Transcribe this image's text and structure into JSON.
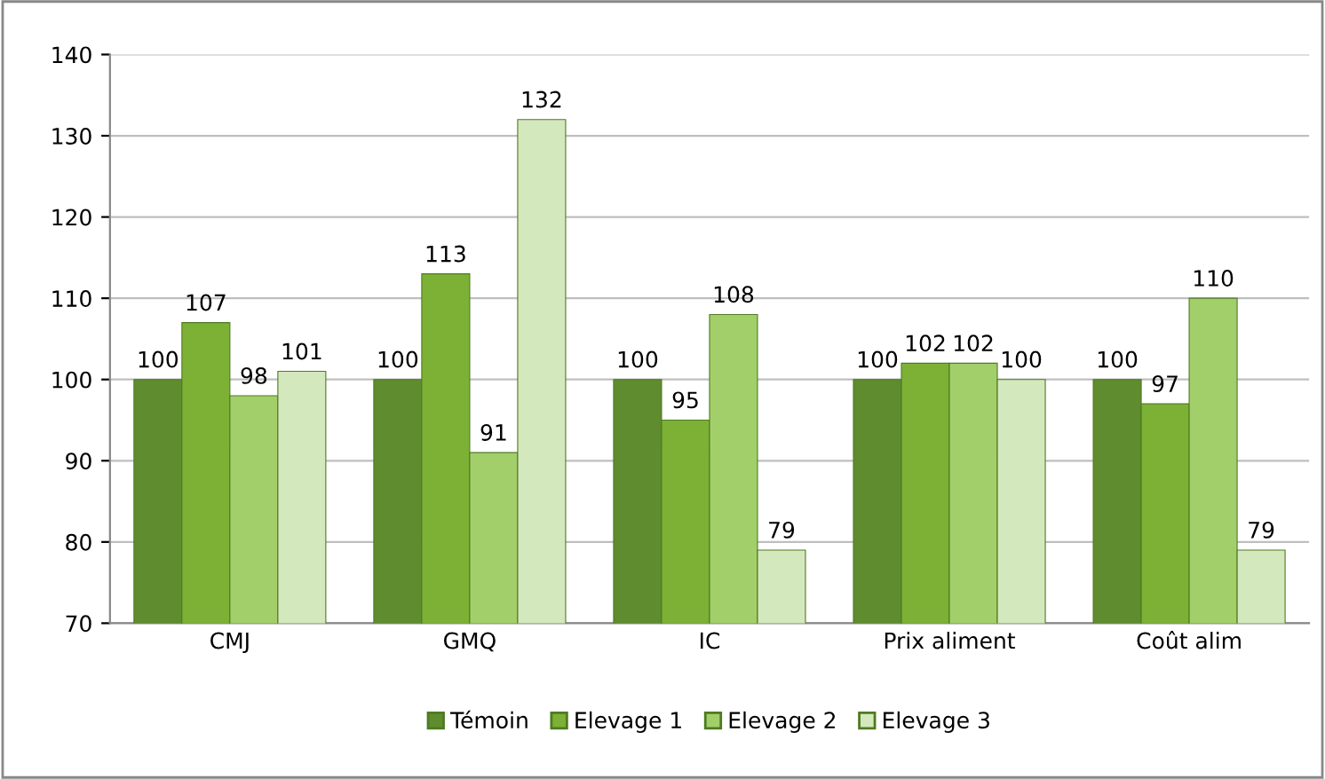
{
  "chart_data": {
    "type": "bar",
    "categories": [
      "CMJ",
      "GMQ",
      "IC",
      "Prix aliment",
      "Coût alim"
    ],
    "series": [
      {
        "name": "Témoin",
        "color": "#5e8c2e",
        "values": [
          100,
          100,
          100,
          100,
          100
        ]
      },
      {
        "name": "Elevage 1",
        "color": "#7cb135",
        "values": [
          107,
          113,
          95,
          102,
          97
        ]
      },
      {
        "name": "Elevage 2",
        "color": "#a3cf6a",
        "values": [
          98,
          91,
          108,
          102,
          110
        ]
      },
      {
        "name": "Elevage 3",
        "color": "#d4e8bd",
        "values": [
          101,
          132,
          79,
          100,
          79
        ]
      }
    ],
    "ylim": [
      70,
      140
    ],
    "yticks": [
      70,
      80,
      90,
      100,
      110,
      120,
      130,
      140
    ],
    "grid": "y",
    "legend": "bottom",
    "data_labels": true
  }
}
